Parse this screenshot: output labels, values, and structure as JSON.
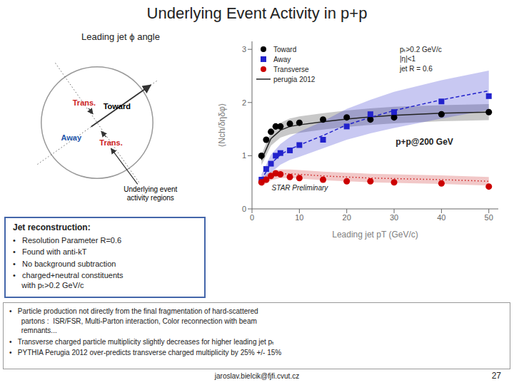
{
  "chart_data": {
    "type": "line",
    "title": "Underlying Event Activity in p+p",
    "subtitle": "Leading jet ϕ angle",
    "x_label": "Leading jet pT (GeV/c)",
    "y_label": "⟨Nch/δηδφ⟩",
    "xlim": [
      0,
      52
    ],
    "xticks": [
      0,
      10,
      20,
      30,
      40,
      50
    ],
    "ylim": [
      0,
      3.15
    ],
    "yticks": [
      0,
      1,
      2,
      3
    ],
    "grid": false,
    "legend": "upper left",
    "series": [
      {
        "name": "Toward",
        "type": "scatter",
        "marker": "circle",
        "color": "#000000",
        "x": [
          2,
          3,
          4,
          5,
          6,
          8,
          10,
          15,
          20,
          25,
          30,
          40,
          50
        ],
        "values": [
          1.0,
          1.3,
          1.45,
          1.55,
          1.55,
          1.6,
          1.62,
          1.68,
          1.72,
          1.68,
          1.72,
          1.78,
          1.82
        ]
      },
      {
        "name": "Away",
        "type": "scatter",
        "marker": "square",
        "color": "#2222cc",
        "x": [
          2,
          3,
          4,
          5,
          6,
          8,
          10,
          15,
          20,
          25,
          30,
          40,
          50
        ],
        "values": [
          0.55,
          0.75,
          0.85,
          1.0,
          1.05,
          1.1,
          1.2,
          1.3,
          1.55,
          1.78,
          1.82,
          2.02,
          2.12
        ]
      },
      {
        "name": "Transverse",
        "type": "scatter",
        "marker": "circle",
        "color": "#cc0000",
        "x": [
          2,
          3,
          4,
          5,
          6,
          8,
          10,
          15,
          20,
          25,
          30,
          40,
          50
        ],
        "values": [
          0.5,
          0.55,
          0.62,
          0.67,
          0.65,
          0.6,
          0.58,
          0.55,
          0.52,
          0.52,
          0.5,
          0.48,
          0.42
        ]
      },
      {
        "name": "perugia 2012",
        "type": "line",
        "line_style": "solid",
        "color": "#222222",
        "x": [
          2,
          4,
          6,
          8,
          10,
          15,
          20,
          25,
          30,
          40,
          50
        ],
        "values": [
          0.92,
          1.32,
          1.48,
          1.55,
          1.58,
          1.64,
          1.69,
          1.73,
          1.76,
          1.8,
          1.82
        ],
        "upper": [
          1.02,
          1.45,
          1.62,
          1.7,
          1.74,
          1.8,
          1.85,
          1.89,
          1.92,
          1.95,
          1.97
        ],
        "lower": [
          0.82,
          1.19,
          1.34,
          1.4,
          1.43,
          1.49,
          1.54,
          1.58,
          1.61,
          1.65,
          1.67
        ]
      },
      {
        "type": "line",
        "line_style": "dashed",
        "color": "#2222cc",
        "x": [
          2,
          4,
          6,
          8,
          10,
          15,
          20,
          25,
          30,
          40,
          50
        ],
        "values": [
          0.55,
          0.85,
          1.02,
          1.12,
          1.2,
          1.38,
          1.58,
          1.72,
          1.85,
          2.05,
          2.22
        ],
        "upper": [
          0.65,
          1.02,
          1.22,
          1.35,
          1.45,
          1.65,
          1.88,
          2.05,
          2.2,
          2.42,
          2.6
        ],
        "lower": [
          0.45,
          0.68,
          0.83,
          0.92,
          0.98,
          1.14,
          1.3,
          1.42,
          1.52,
          1.7,
          1.86
        ]
      },
      {
        "type": "line",
        "line_style": "dotted",
        "color": "#cc2222",
        "x": [
          2,
          4,
          6,
          8,
          10,
          15,
          20,
          25,
          30,
          40,
          50
        ],
        "values": [
          0.5,
          0.62,
          0.66,
          0.66,
          0.65,
          0.62,
          0.6,
          0.58,
          0.57,
          0.55,
          0.52
        ],
        "upper": [
          0.58,
          0.7,
          0.74,
          0.74,
          0.73,
          0.7,
          0.68,
          0.66,
          0.65,
          0.63,
          0.6
        ],
        "lower": [
          0.42,
          0.54,
          0.58,
          0.58,
          0.57,
          0.54,
          0.52,
          0.5,
          0.49,
          0.47,
          0.44
        ]
      }
    ],
    "annotations": [
      "pₜ>0.2 GeV/c\n|η|<1\njet R = 0.6",
      "p+p@200 GeV",
      "STAR Preliminary"
    ],
    "diagram_labels": [
      {
        "text": "Toward",
        "color": "#000000"
      },
      {
        "text": "Away",
        "color": "#2255aa"
      },
      {
        "text": "Trans.",
        "color": "#cc2222"
      },
      {
        "text": "Trans.",
        "color": "#cc2222"
      },
      {
        "text": "Underlying event\nactivity regions",
        "color": "#000000"
      }
    ],
    "box_title": "Jet reconstruction:",
    "box_items": [
      "•   Resolution Parameter R=0.6",
      "•   Found with anti-kT",
      "•   No background subtraction",
      "•   charged+neutral constituents\n    with pₜ>0.2 GeV/c"
    ],
    "notes": [
      "•   Particle production not directly from the final fragmentation of hard-scattered\n      partons :  ISR/FSR, Multi-Parton interaction, Color reconnection with beam\n      remnants...",
      "•   Transverse charged particle multiplicity slightly decreases for higher leading jet pₜ",
      "•   PYTHIA Perugia 2012 over-predicts transverse charged multiplicity by 25% +/- 15%"
    ],
    "footer": [
      "jaroslav.bielcik@fjfi.cvut.cz",
      "27"
    ]
  }
}
